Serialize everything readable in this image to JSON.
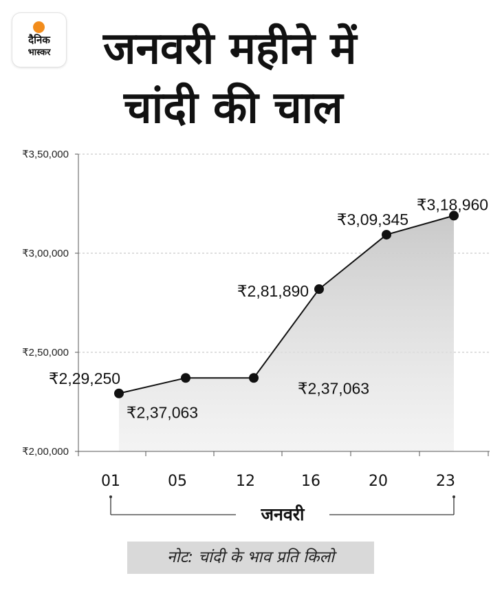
{
  "logo": {
    "line1": "दैनिक",
    "line2": "भास्कर",
    "accent_color": "#f28c1b"
  },
  "title": {
    "line1": "जनवरी महीने में",
    "line2": "चांदी की चाल"
  },
  "note": "नोट: चांदी के भाव प्रति किलो",
  "chart_data": {
    "type": "area",
    "title": "जनवरी महीने में चांदी की चाल",
    "xlabel": "जनवरी",
    "ylabel": "",
    "x": [
      "01",
      "05",
      "12",
      "16",
      "20",
      "23"
    ],
    "values": [
      229250,
      237063,
      237063,
      281890,
      309345,
      318960
    ],
    "labels": [
      "₹2,29,250",
      "₹2,37,063",
      "₹2,37,063",
      "₹2,81,890",
      "₹3,09,345",
      "₹3,18,960"
    ],
    "ylim": [
      200000,
      350000
    ],
    "yticks": [
      200000,
      250000,
      300000,
      350000
    ],
    "ytick_labels": [
      "₹2,00,000",
      "₹2,50,000",
      "₹3,00,000",
      "₹3,50,000"
    ],
    "grid": true,
    "line_color": "#111111",
    "fill_color": "#d0d0d0"
  }
}
